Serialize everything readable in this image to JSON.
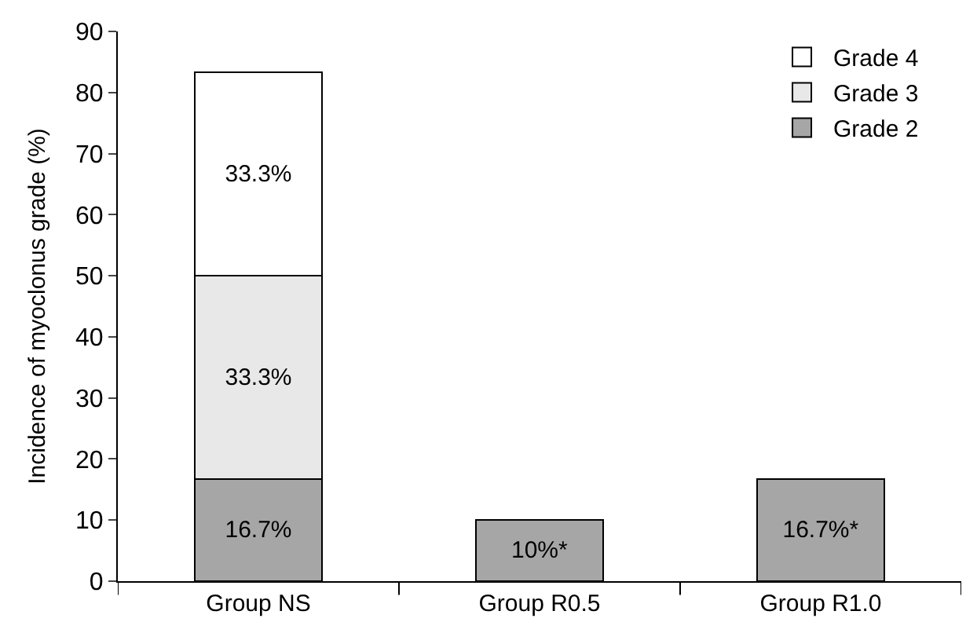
{
  "chart_data": {
    "type": "bar",
    "stacked": true,
    "ylabel": "Incidence of myoclonus grade (%)",
    "categories": [
      "Group NS",
      "Group R0.5",
      "Group R1.0"
    ],
    "series": [
      {
        "name": "Grade 2",
        "color": "#a6a6a6",
        "values": [
          16.7,
          10,
          16.7
        ],
        "value_labels": [
          "16.7%",
          "10%*",
          "16.7%*"
        ]
      },
      {
        "name": "Grade 3",
        "color": "#e8e8e8",
        "values": [
          33.3,
          null,
          null
        ],
        "value_labels": [
          "33.3%",
          null,
          null
        ]
      },
      {
        "name": "Grade 4",
        "color": "#ffffff",
        "values": [
          33.3,
          null,
          null
        ],
        "value_labels": [
          "33.3%",
          null,
          null
        ]
      }
    ],
    "ylim": [
      0,
      90
    ],
    "yticks": [
      0,
      10,
      20,
      30,
      40,
      50,
      60,
      70,
      80,
      90
    ],
    "legend": "top right"
  }
}
